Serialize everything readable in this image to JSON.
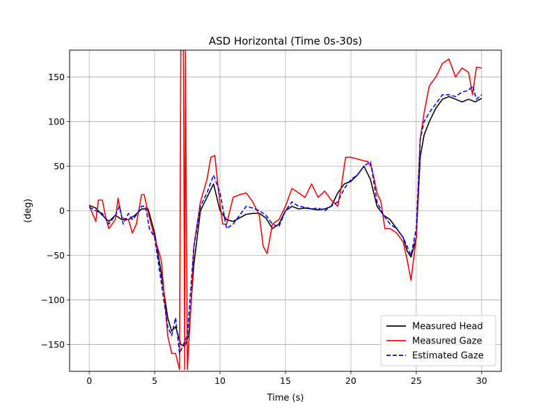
{
  "chart_data": {
    "type": "line",
    "title": "ASD Horizontal (Time 0s-30s)",
    "xlabel": "Time (s)",
    "ylabel": "(deg)",
    "xlim": [
      -1.5,
      31.5
    ],
    "ylim": [
      -180,
      180
    ],
    "xticks": [
      0,
      5,
      10,
      15,
      20,
      25,
      30
    ],
    "yticks": [
      -150,
      -100,
      -50,
      0,
      50,
      100,
      150
    ],
    "xtick_labels": [
      "0",
      "5",
      "10",
      "15",
      "20",
      "25",
      "30"
    ],
    "ytick_labels": [
      "−150",
      "−100",
      "−50",
      "0",
      "50",
      "100",
      "150"
    ],
    "grid": true,
    "legend_position": "lower-right",
    "series": [
      {
        "name": "Measured Head",
        "color": "#000000",
        "style": "solid",
        "x": [
          0,
          0.5,
          1,
          1.5,
          2,
          2.5,
          3,
          3.5,
          4,
          4.5,
          5,
          5.5,
          6,
          6.3,
          6.6,
          7,
          7.3,
          7.6,
          8,
          8.5,
          9,
          9.5,
          10,
          10.5,
          11,
          11.5,
          12,
          12.5,
          13,
          13.5,
          14,
          14.5,
          15,
          15.5,
          16,
          16.5,
          17,
          17.5,
          18,
          18.5,
          19,
          19.5,
          20,
          20.5,
          21,
          21.5,
          22,
          22.5,
          23,
          23.5,
          24,
          24.3,
          24.6,
          25,
          25.3,
          25.6,
          26,
          26.5,
          27,
          27.5,
          28,
          28.5,
          29,
          29.5,
          30
        ],
        "y": [
          6,
          3,
          -5,
          -12,
          -5,
          -10,
          -10,
          -5,
          2,
          2,
          -25,
          -70,
          -120,
          -135,
          -130,
          -150,
          -152,
          -140,
          -60,
          0,
          15,
          30,
          0,
          -10,
          -12,
          -8,
          -4,
          -3,
          -3,
          -8,
          -20,
          -15,
          0,
          5,
          2,
          3,
          2,
          1,
          2,
          5,
          20,
          30,
          33,
          40,
          50,
          35,
          5,
          -5,
          -10,
          -20,
          -30,
          -45,
          -52,
          -30,
          60,
          85,
          100,
          115,
          125,
          128,
          125,
          122,
          125,
          122,
          126
        ]
      },
      {
        "name": "Measured Gaze",
        "color": "#ff0000",
        "style": "solid",
        "x": [
          0,
          0.3,
          0.5,
          0.7,
          1,
          1.3,
          1.5,
          2,
          2.2,
          2.5,
          3,
          3.3,
          3.6,
          4,
          4.2,
          4.5,
          5,
          5.5,
          6,
          6.3,
          6.6,
          6.9,
          7.0,
          7.05,
          7.2,
          7.3,
          7.35,
          7.5,
          7.8,
          8,
          8.5,
          9,
          9.3,
          9.6,
          9.9,
          10.2,
          10.5,
          11,
          11.5,
          12,
          12.5,
          13,
          13.3,
          13.6,
          14,
          14.5,
          15,
          15.5,
          16,
          16.5,
          17,
          17.5,
          18,
          18.5,
          19,
          19.3,
          19.6,
          20,
          20.5,
          21,
          21.3,
          21.6,
          22,
          22.3,
          22.6,
          23,
          23.5,
          24,
          24.3,
          24.6,
          25,
          25.3,
          25.6,
          26,
          26.5,
          27,
          27.5,
          28,
          28.5,
          29,
          29.3,
          29.6,
          30
        ],
        "y": [
          6,
          -5,
          -12,
          12,
          12,
          -10,
          -20,
          -10,
          14,
          -8,
          -10,
          -25,
          -15,
          18,
          18,
          -2,
          -30,
          -55,
          -140,
          -160,
          -160,
          -178,
          180,
          180,
          180,
          -178,
          180,
          -178,
          -100,
          -40,
          10,
          35,
          60,
          62,
          20,
          -15,
          -15,
          15,
          18,
          20,
          10,
          -5,
          -40,
          -48,
          -15,
          -10,
          5,
          25,
          20,
          15,
          30,
          15,
          22,
          12,
          5,
          30,
          60,
          60,
          58,
          56,
          55,
          48,
          20,
          10,
          -20,
          -20,
          -25,
          -35,
          -55,
          -78,
          -30,
          80,
          110,
          140,
          150,
          165,
          170,
          150,
          160,
          155,
          130,
          161,
          160
        ]
      },
      {
        "name": "Estimated Gaze",
        "color": "#0000ff",
        "style": "dashed",
        "x": [
          0,
          0.5,
          1,
          1.5,
          2,
          2.3,
          2.6,
          3,
          3.3,
          3.6,
          4,
          4.3,
          4.6,
          5,
          5.5,
          6,
          6.3,
          6.6,
          6.9,
          7.2,
          7.5,
          8,
          8.5,
          9,
          9.5,
          10,
          10.5,
          11,
          11.5,
          12,
          12.5,
          13,
          13.5,
          14,
          14.5,
          15,
          15.5,
          16,
          16.5,
          17,
          17.5,
          18,
          18.5,
          19,
          19.5,
          20,
          20.5,
          21,
          21.5,
          22,
          22.5,
          23,
          23.5,
          24,
          24.3,
          24.6,
          25,
          25.3,
          25.6,
          26,
          26.5,
          27,
          27.5,
          28,
          28.5,
          29,
          29.3,
          29.6,
          30
        ],
        "y": [
          4,
          0,
          -3,
          -15,
          -5,
          5,
          -15,
          -3,
          -10,
          -5,
          5,
          5,
          -20,
          -30,
          -80,
          -130,
          -140,
          -120,
          -160,
          -150,
          -140,
          -40,
          5,
          20,
          40,
          20,
          -20,
          -15,
          -5,
          5,
          3,
          0,
          -5,
          -15,
          -18,
          0,
          10,
          5,
          4,
          2,
          3,
          0,
          5,
          10,
          25,
          35,
          40,
          50,
          55,
          10,
          -5,
          -15,
          -20,
          -30,
          -40,
          -50,
          -20,
          80,
          100,
          110,
          120,
          130,
          130,
          128,
          133,
          135,
          140,
          125,
          130
        ]
      }
    ]
  }
}
